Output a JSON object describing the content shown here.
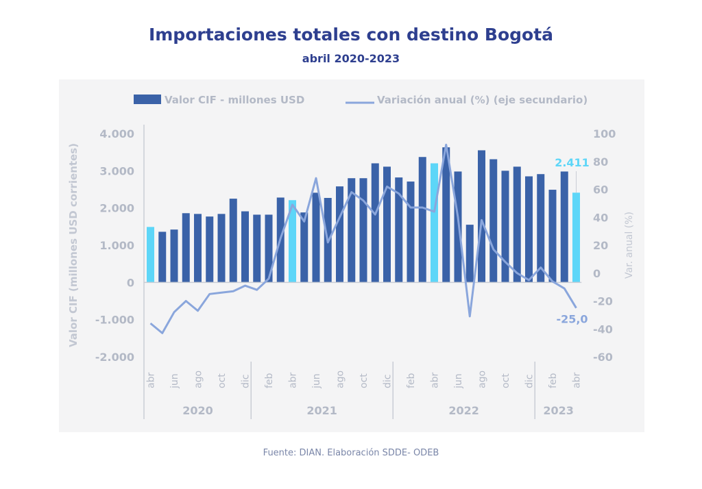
{
  "header": {
    "title": "Importaciones totales con destino Bogotá",
    "subtitle": "abril 2020-2023"
  },
  "footer": {
    "source": "Fuente: DIAN. Elaboración SDDE- ODEB"
  },
  "colors": {
    "bar": "#3a62a8",
    "bar_highlight": "#5dd6f8",
    "line": "#8aa6dc",
    "axis_text": "#b3b9c6",
    "title": "#2e3f8f",
    "panel": "#f4f4f5"
  },
  "chart_data": {
    "type": "bar",
    "title": "Importaciones totales con destino Bogotá",
    "subtitle": "abril 2020-2023",
    "ylabel": "Valor CIF (millones USD corrientes)",
    "y2label": "Var. anual (%)",
    "ylim": [
      -2000,
      4000
    ],
    "y2lim": [
      -60,
      100
    ],
    "yticks": [
      "4.000",
      "3.000",
      "2.000",
      "1.000",
      "0",
      "-1.000",
      "-2.000"
    ],
    "y2ticks": [
      "100",
      "80",
      "60",
      "40",
      "20",
      "0",
      "-20",
      "-40",
      "-60"
    ],
    "legend": {
      "position": "top",
      "entries": [
        "Valor CIF - millones USD",
        "Variación anual (%) (eje secundario)"
      ]
    },
    "month_labels": [
      "abr",
      "",
      "jun",
      "",
      "ago",
      "",
      "oct",
      "",
      "dic",
      "",
      "feb",
      "",
      "abr",
      "",
      "jun",
      "",
      "ago",
      "",
      "oct",
      "",
      "dic",
      "",
      "feb",
      "",
      "abr",
      "",
      "jun",
      "",
      "ago",
      "",
      "oct",
      "",
      "dic",
      "",
      "feb",
      "",
      "abr"
    ],
    "years": [
      {
        "label": "2020",
        "start": 0,
        "end": 8
      },
      {
        "label": "2021",
        "start": 9,
        "end": 20
      },
      {
        "label": "2022",
        "start": 21,
        "end": 32
      },
      {
        "label": "2023",
        "start": 33,
        "end": 36
      }
    ],
    "highlight_indices": [
      0,
      12,
      24,
      36
    ],
    "series": [
      {
        "name": "Valor CIF - millones USD",
        "type": "bar",
        "axis": "primary",
        "values": [
          1490,
          1360,
          1420,
          1860,
          1840,
          1770,
          1840,
          2250,
          1910,
          1820,
          1820,
          2280,
          2210,
          1880,
          2410,
          2270,
          2580,
          2800,
          2800,
          3200,
          3110,
          2820,
          2710,
          3370,
          3200,
          3630,
          2980,
          1550,
          3550,
          3310,
          3000,
          3110,
          2850,
          2910,
          2490,
          2980,
          2411
        ]
      },
      {
        "name": "Variación anual (%) (eje secundario)",
        "type": "line",
        "axis": "secondary",
        "values": [
          -36,
          -43,
          -28,
          -20,
          -27,
          -15,
          -14,
          -13,
          -9,
          -12,
          -4,
          25,
          49,
          37,
          68,
          22,
          40,
          58,
          52,
          42,
          62,
          57,
          47,
          47,
          44,
          92,
          40,
          -31,
          38,
          17,
          8,
          0,
          -5,
          4,
          -6,
          -11,
          -25.0
        ]
      }
    ],
    "annotations": {
      "last_bar": "2.411",
      "last_line": "-25,0"
    }
  }
}
